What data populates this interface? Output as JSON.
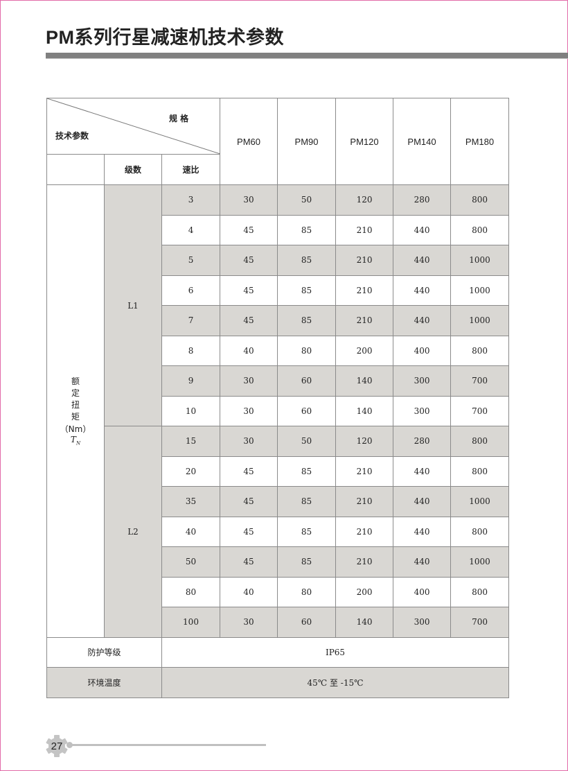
{
  "page_title": "PM系列行星减速机技术参数",
  "page_number": "27",
  "table": {
    "corner_top_label": "规 格",
    "corner_left_label": "技术参数",
    "stage_header": "级数",
    "ratio_header": "速比",
    "models": [
      "PM60",
      "PM90",
      "PM120",
      "PM140",
      "PM180"
    ],
    "param_label_lines": [
      "额",
      "定",
      "扭",
      "矩"
    ],
    "param_unit": "（Nm）",
    "param_symbol": "T",
    "param_symbol_sub": "N",
    "groups": [
      {
        "stage": "L1",
        "rows": [
          {
            "ratio": "3",
            "values": [
              "30",
              "50",
              "120",
              "280",
              "800"
            ]
          },
          {
            "ratio": "4",
            "values": [
              "45",
              "85",
              "210",
              "440",
              "800"
            ]
          },
          {
            "ratio": "5",
            "values": [
              "45",
              "85",
              "210",
              "440",
              "1000"
            ]
          },
          {
            "ratio": "6",
            "values": [
              "45",
              "85",
              "210",
              "440",
              "1000"
            ]
          },
          {
            "ratio": "7",
            "values": [
              "45",
              "85",
              "210",
              "440",
              "1000"
            ]
          },
          {
            "ratio": "8",
            "values": [
              "40",
              "80",
              "200",
              "400",
              "800"
            ]
          },
          {
            "ratio": "9",
            "values": [
              "30",
              "60",
              "140",
              "300",
              "700"
            ]
          },
          {
            "ratio": "10",
            "values": [
              "30",
              "60",
              "140",
              "300",
              "700"
            ]
          }
        ]
      },
      {
        "stage": "L2",
        "rows": [
          {
            "ratio": "15",
            "values": [
              "30",
              "50",
              "120",
              "280",
              "800"
            ]
          },
          {
            "ratio": "20",
            "values": [
              "45",
              "85",
              "210",
              "440",
              "800"
            ]
          },
          {
            "ratio": "35",
            "values": [
              "45",
              "85",
              "210",
              "440",
              "1000"
            ]
          },
          {
            "ratio": "40",
            "values": [
              "45",
              "85",
              "210",
              "440",
              "800"
            ]
          },
          {
            "ratio": "50",
            "values": [
              "45",
              "85",
              "210",
              "440",
              "1000"
            ]
          },
          {
            "ratio": "80",
            "values": [
              "40",
              "80",
              "200",
              "400",
              "800"
            ]
          },
          {
            "ratio": "100",
            "values": [
              "30",
              "60",
              "140",
              "300",
              "700"
            ]
          }
        ]
      }
    ],
    "protection": {
      "label": "防护等级",
      "value": "IP65"
    },
    "temperature": {
      "label": "环境温度",
      "value": "45℃ 至 -15℃"
    }
  },
  "colors": {
    "row_shade": "#d9d7d3",
    "title_rule": "#808080",
    "page_border": "#e26aa8"
  }
}
